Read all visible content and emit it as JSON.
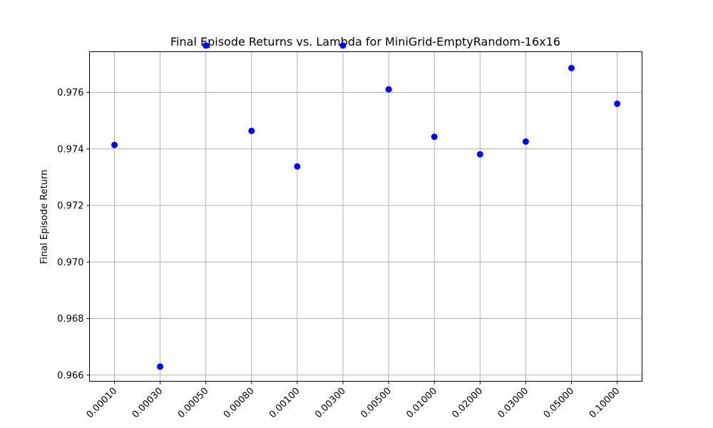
{
  "chart_data": {
    "type": "scatter",
    "title": "Final Episode Returns vs. Lambda for MiniGrid-EmptyRandom-16x16",
    "xlabel": "",
    "ylabel": "Final Episode Return",
    "categories": [
      "0.00010",
      "0.00030",
      "0.00050",
      "0.00080",
      "0.00100",
      "0.00300",
      "0.00500",
      "0.01000",
      "0.02000",
      "0.03000",
      "0.05000",
      "0.10000"
    ],
    "values": [
      0.97414,
      0.9663,
      0.97766,
      0.97464,
      0.97338,
      0.97766,
      0.97611,
      0.97443,
      0.97381,
      0.97426,
      0.97686,
      0.9756
    ],
    "yticks": [
      "0.966",
      "0.968",
      "0.970",
      "0.972",
      "0.974",
      "0.976"
    ],
    "ylim": [
      0.96578,
      0.97744
    ],
    "grid": true,
    "marker_color": "#0000ff"
  }
}
